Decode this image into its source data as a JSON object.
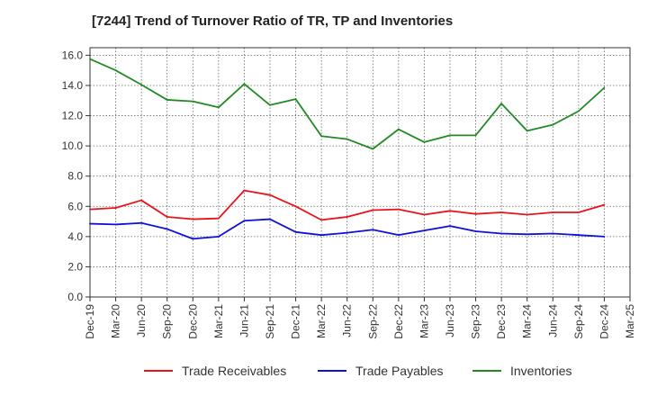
{
  "title": "[7244]  Trend of Turnover Ratio of TR, TP and Inventories",
  "chart_data": {
    "type": "line",
    "categories": [
      "Dec-19",
      "Mar-20",
      "Jun-20",
      "Sep-20",
      "Dec-20",
      "Mar-21",
      "Jun-21",
      "Sep-21",
      "Dec-21",
      "Mar-22",
      "Jun-22",
      "Sep-22",
      "Dec-22",
      "Mar-23",
      "Jun-23",
      "Sep-23",
      "Dec-23",
      "Mar-24",
      "Jun-24",
      "Sep-24",
      "Dec-24",
      "Mar-25"
    ],
    "y_tick_labels": [
      "0.0",
      "2.0",
      "4.0",
      "6.0",
      "8.0",
      "10.0",
      "12.0",
      "14.0",
      "16.0"
    ],
    "ylim": [
      0,
      16.5
    ],
    "grid": true,
    "legend_position": "bottom",
    "series": [
      {
        "name": "Trade Receivables",
        "color": "#e8141c",
        "values": [
          5.8,
          5.9,
          6.4,
          5.3,
          5.15,
          5.2,
          7.05,
          6.75,
          6.0,
          5.1,
          5.3,
          5.75,
          5.8,
          5.45,
          5.7,
          5.5,
          5.6,
          5.45,
          5.6,
          5.6,
          6.1,
          null
        ]
      },
      {
        "name": "Trade Payables",
        "color": "#1010d8",
        "values": [
          4.85,
          4.8,
          4.9,
          4.5,
          3.85,
          4.0,
          5.05,
          5.15,
          4.3,
          4.1,
          4.25,
          4.45,
          4.1,
          4.4,
          4.7,
          4.35,
          4.2,
          4.15,
          4.2,
          4.1,
          4.0,
          null
        ]
      },
      {
        "name": "Inventories",
        "color": "#238a23",
        "values": [
          15.75,
          15.0,
          14.05,
          13.05,
          12.95,
          12.55,
          14.1,
          12.7,
          13.1,
          10.65,
          10.45,
          9.8,
          11.1,
          10.25,
          10.7,
          10.7,
          12.8,
          11.0,
          11.4,
          12.3,
          13.85,
          null
        ]
      }
    ]
  }
}
